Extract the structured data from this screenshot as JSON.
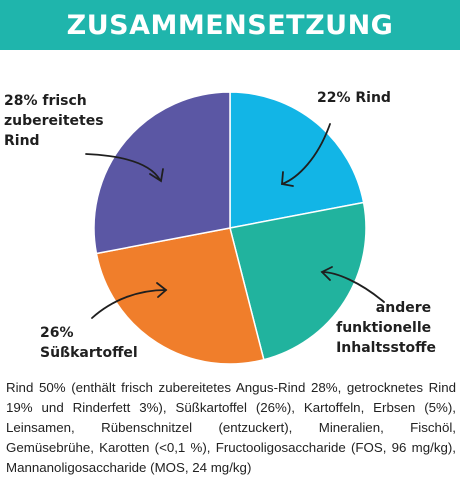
{
  "header": {
    "title": "ZUSAMMENSETZUNG"
  },
  "chart_data": {
    "type": "pie",
    "title": "",
    "slices": [
      {
        "name": "22% Rind",
        "value": 22,
        "color": "#12b5e6"
      },
      {
        "name": "andere funktionelle Inhaltsstoffe",
        "value": 24,
        "color": "#21b39e"
      },
      {
        "name": "26% Süßkartoffel",
        "value": 26,
        "color": "#f07e2b"
      },
      {
        "name": "28% frisch zubereitetes Rind",
        "value": 28,
        "color": "#5b57a4"
      }
    ],
    "labels": {
      "rind": [
        "22% Rind"
      ],
      "andere": [
        "andere",
        "funktionelle",
        "Inhaltsstoffe"
      ],
      "suess": [
        "26%",
        "Süßkartoffel"
      ],
      "frisch": [
        "28% frisch",
        "zubereitetes",
        "Rind"
      ]
    }
  },
  "description": "Rind 50% (enthält frisch zubereitetes Angus-Rind 28%, getrocknetes Rind 19% und Rinderfett 3%), Süßkartoffel (26%), Kartoffeln, Erbsen (5%), Leinsamen, Rübenschnitzel (entzuckert), Mineralien, Fischöl, Gemüsebrühe, Karotten (<0,1 %), Fructooligosaccharide (FOS, 96 mg/kg), Mannanoligosaccharide (MOS, 24 mg/kg)"
}
